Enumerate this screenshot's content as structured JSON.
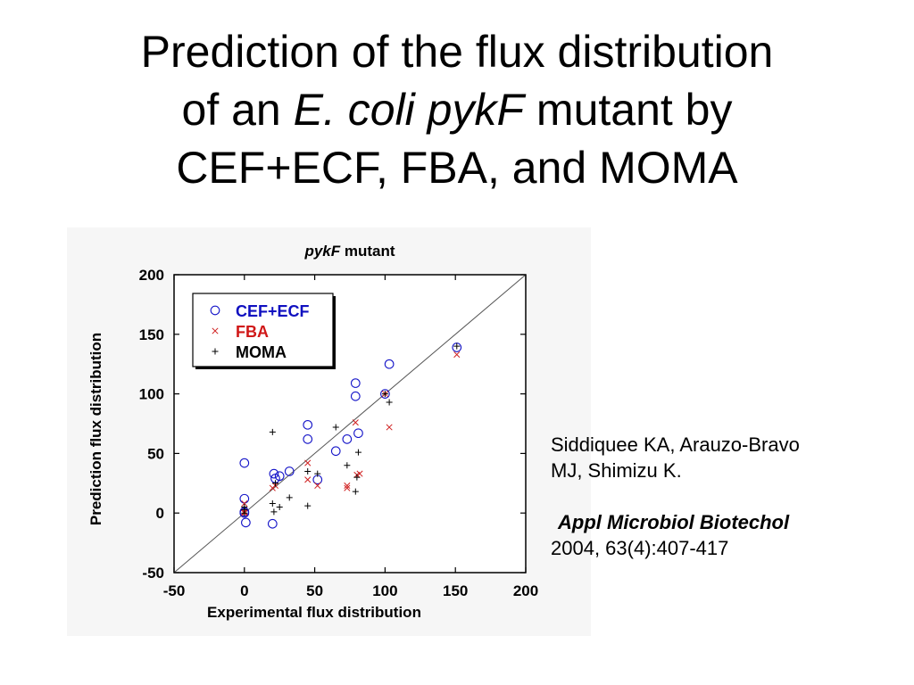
{
  "slide": {
    "title_line1": "Prediction of the flux distribution",
    "title_line2_pre": "of an ",
    "title_line2_italic": "E. coli pykF",
    "title_line2_post": " mutant by",
    "title_line3": "CEF+ECF, FBA, and MOMA"
  },
  "citation": {
    "authors_line1": "Siddiquee KA, Arauzo-Bravo",
    "authors_line2": "MJ, Shimizu K.",
    "journal": "Appl Microbiol Biotechol",
    "volume": "2004, 63(4):407-417"
  },
  "chart_data": {
    "type": "scatter",
    "title_italic": "pykF",
    "title_rest": " mutant",
    "xlabel": "Experimental flux distribution",
    "ylabel": "Prediction flux distribution",
    "xlim": [
      -50,
      200
    ],
    "ylim": [
      -50,
      200
    ],
    "xticks": [
      -50,
      0,
      50,
      100,
      150,
      200
    ],
    "yticks": [
      -50,
      0,
      50,
      100,
      150,
      200
    ],
    "diagonal": true,
    "legend_position": "top-left",
    "series": [
      {
        "name": "CEF+ECF",
        "marker": "circle",
        "color": "#1414c8",
        "points": [
          [
            0,
            42
          ],
          [
            0,
            12
          ],
          [
            0,
            1
          ],
          [
            0,
            0
          ],
          [
            1,
            -8
          ],
          [
            20,
            -9
          ],
          [
            21,
            33
          ],
          [
            22,
            29
          ],
          [
            25,
            31
          ],
          [
            32,
            35
          ],
          [
            45,
            74
          ],
          [
            45,
            62
          ],
          [
            52,
            28
          ],
          [
            65,
            52
          ],
          [
            73,
            62
          ],
          [
            79,
            109
          ],
          [
            79,
            98
          ],
          [
            81,
            67
          ],
          [
            100,
            100
          ],
          [
            103,
            125
          ],
          [
            151,
            139
          ]
        ]
      },
      {
        "name": "FBA",
        "marker": "x",
        "color": "#d02020",
        "points": [
          [
            0,
            0
          ],
          [
            0,
            1
          ],
          [
            0,
            8
          ],
          [
            20,
            21
          ],
          [
            22,
            23
          ],
          [
            45,
            28
          ],
          [
            45,
            42
          ],
          [
            52,
            23
          ],
          [
            73,
            21
          ],
          [
            73,
            23
          ],
          [
            79,
            76
          ],
          [
            80,
            32
          ],
          [
            82,
            33
          ],
          [
            100,
            100
          ],
          [
            103,
            72
          ],
          [
            151,
            133
          ]
        ]
      },
      {
        "name": "MOMA",
        "marker": "plus",
        "color": "#000000",
        "points": [
          [
            0,
            0
          ],
          [
            0,
            3
          ],
          [
            0,
            5
          ],
          [
            20,
            68
          ],
          [
            20,
            8
          ],
          [
            21,
            1
          ],
          [
            22,
            25
          ],
          [
            25,
            5
          ],
          [
            32,
            13
          ],
          [
            45,
            35
          ],
          [
            45,
            6
          ],
          [
            52,
            33
          ],
          [
            65,
            72
          ],
          [
            73,
            40
          ],
          [
            79,
            18
          ],
          [
            80,
            30
          ],
          [
            81,
            51
          ],
          [
            100,
            100
          ],
          [
            103,
            93
          ],
          [
            151,
            140
          ]
        ]
      }
    ]
  }
}
